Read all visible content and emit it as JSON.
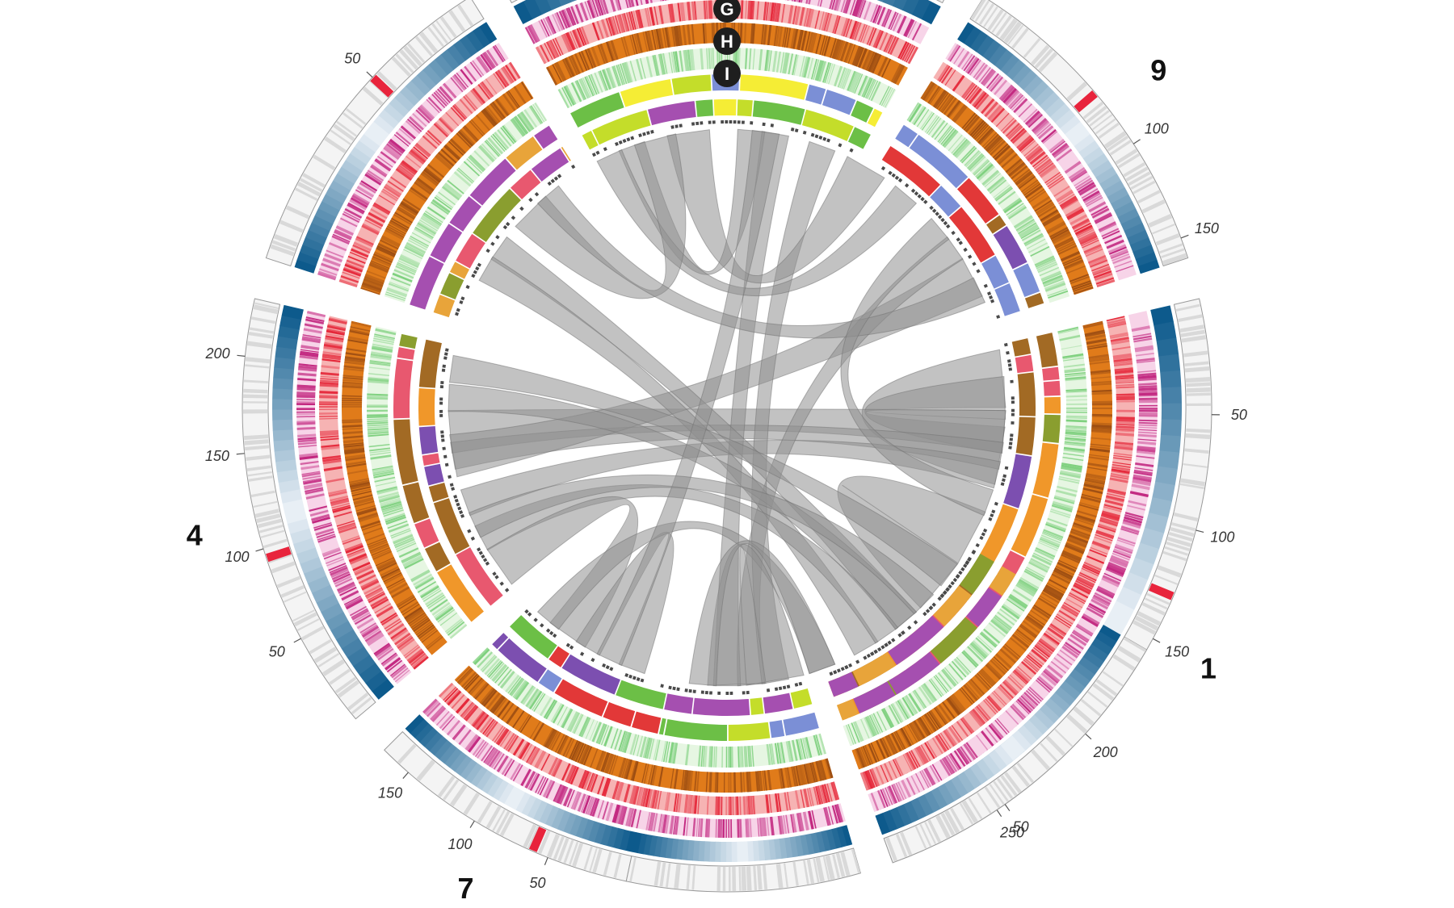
{
  "chart_data": {
    "type": "circos",
    "chromosomes": [
      {
        "name": "1",
        "label": "1",
        "start_deg": 77,
        "end_deg": 160,
        "max_mb": 300,
        "ticks": [
          50,
          100,
          150,
          200,
          250
        ],
        "marker_mb": 130
      },
      {
        "name": "9",
        "label": "9",
        "start_deg": 32,
        "end_deg": 72,
        "max_mb": 160,
        "ticks": [
          100,
          150
        ],
        "marker_mb": 70
      },
      {
        "name": "H",
        "label": "",
        "start_deg": -28,
        "end_deg": 28,
        "max_mb": 0,
        "ticks": [],
        "marker_mb": null
      },
      {
        "name": "A",
        "label": "",
        "start_deg": -72,
        "end_deg": -32,
        "max_mb": 80,
        "ticks": [
          50
        ],
        "marker_mb": 50
      },
      {
        "name": "4",
        "label": "4",
        "start_deg": -130,
        "end_deg": -77,
        "max_mb": 230,
        "ticks": [
          50,
          100,
          150,
          200
        ],
        "marker_mb": 95
      },
      {
        "name": "7",
        "label": "7",
        "start_deg": -168,
        "end_deg": -135,
        "max_mb": 170,
        "ticks": [
          50,
          100,
          150
        ],
        "marker_mb": 60
      },
      {
        "name": "B",
        "label": "",
        "start_deg": 164,
        "end_deg": 192,
        "max_mb": 0,
        "ticks": [],
        "marker_mb": null
      },
      {
        "name": "C",
        "label": "",
        "start_deg": 120,
        "end_deg": 160,
        "max_mb": 80,
        "ticks": [
          50
        ],
        "marker_mb": null
      }
    ],
    "track_badges": [
      "G",
      "H",
      "I"
    ],
    "colors": {
      "ideogram_gray": "#d9d9d9",
      "ideogram_marker": "#e8243c",
      "blue_dark": "#0d5a8c",
      "blue_light": "#eef3f8",
      "magenta": "#c2267f",
      "red": "#e5283a",
      "brown": "#9c4d12",
      "orange": "#e07b1a",
      "green_light": "#7ed07e",
      "links": "#8f8f8f"
    },
    "segment_colors": [
      "#8a9e2f",
      "#e8586f",
      "#f0972a",
      "#a26a24",
      "#7c4fb0",
      "#e23838",
      "#7b8fd6",
      "#6cbf46",
      "#f5ed35",
      "#c4dd2a",
      "#a54fb0",
      "#e8a43a"
    ],
    "links": [
      {
        "from": 84,
        "to": 100,
        "w": 3
      },
      {
        "from": 88,
        "to": 95,
        "w": 2
      },
      {
        "from": 118,
        "to": 130,
        "w": 3
      },
      {
        "from": 95,
        "to": -95,
        "w": 2
      },
      {
        "from": 100,
        "to": -100,
        "w": 1
      },
      {
        "from": 104,
        "to": -110,
        "w": 1
      },
      {
        "from": 62,
        "to": -100,
        "w": 2
      },
      {
        "from": 55,
        "to": 175,
        "w": 1
      },
      {
        "from": 20,
        "to": 170,
        "w": 1
      },
      {
        "from": 10,
        "to": 180,
        "w": 1
      },
      {
        "from": -8,
        "to": 30,
        "w": 2
      },
      {
        "from": -20,
        "to": 5,
        "w": 1
      },
      {
        "from": -25,
        "to": 40,
        "w": 1
      },
      {
        "from": -45,
        "to": -15,
        "w": 2
      },
      {
        "from": -55,
        "to": 140,
        "w": 1
      },
      {
        "from": -60,
        "to": 150,
        "w": 1
      },
      {
        "from": -82,
        "to": 127,
        "w": 1
      },
      {
        "from": -88,
        "to": 140,
        "w": 1
      },
      {
        "from": -118,
        "to": 145,
        "w": 1
      },
      {
        "from": -125,
        "to": -145,
        "w": 2
      },
      {
        "from": -150,
        "to": -160,
        "w": 1
      },
      {
        "from": -140,
        "to": 160,
        "w": 1
      },
      {
        "from": -155,
        "to": 8,
        "w": 1
      },
      {
        "from": 170,
        "to": 178,
        "w": 3
      },
      {
        "from": 185,
        "to": 160,
        "w": 1
      },
      {
        "from": 65,
        "to": -40,
        "w": 1
      },
      {
        "from": 50,
        "to": 110,
        "w": 1
      },
      {
        "from": 135,
        "to": -115,
        "w": 1
      }
    ]
  }
}
